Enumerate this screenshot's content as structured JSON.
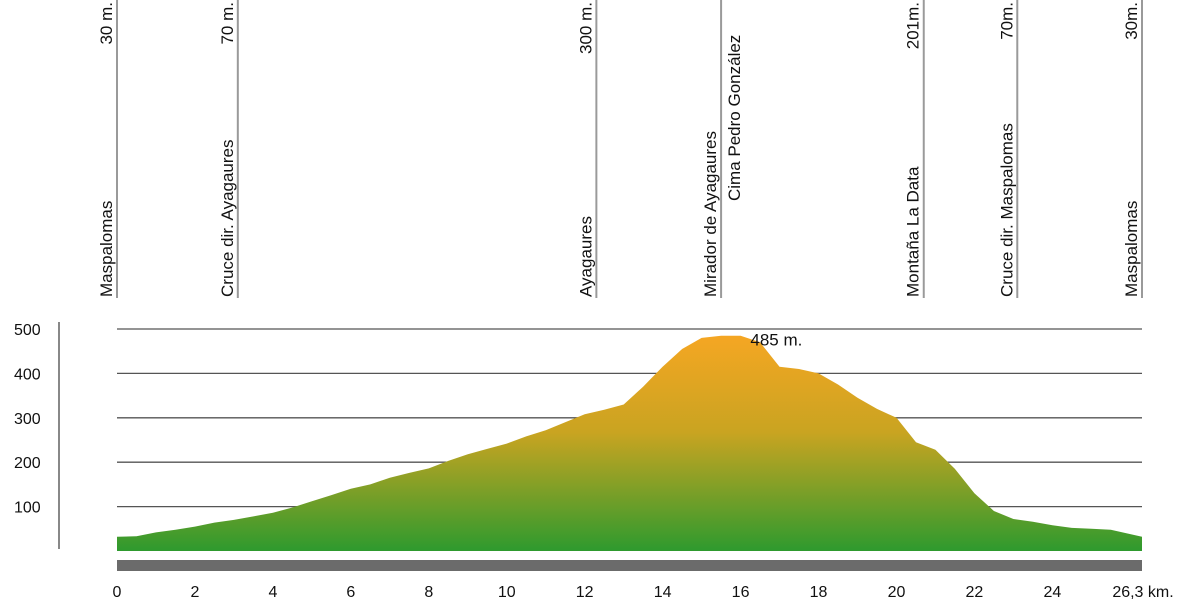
{
  "chart_data": {
    "type": "area",
    "title": "",
    "xlabel": "",
    "ylabel": "",
    "x_unit_label": "26,3 km.",
    "xlim": [
      0,
      26.3
    ],
    "ylim": [
      0,
      500
    ],
    "x_ticks": [
      "0",
      "2",
      "4",
      "6",
      "8",
      "10",
      "12",
      "14",
      "16",
      "18",
      "20",
      "22",
      "24"
    ],
    "y_ticks": [
      "100",
      "200",
      "300",
      "400",
      "500"
    ],
    "grid": true,
    "colors": {
      "top": "#f5a623",
      "bottom": "#2e9a2e",
      "grid": "#555555",
      "bar": "#6b6b6b",
      "marker": "#9a9a9a"
    },
    "peak_annotation": {
      "text": "485 m.",
      "x": 16.2,
      "y": 485
    },
    "profile": [
      [
        0,
        32
      ],
      [
        0.5,
        33
      ],
      [
        1,
        42
      ],
      [
        1.5,
        48
      ],
      [
        2,
        55
      ],
      [
        2.5,
        64
      ],
      [
        3,
        70
      ],
      [
        3.5,
        78
      ],
      [
        4,
        86
      ],
      [
        4.5,
        98
      ],
      [
        5,
        112
      ],
      [
        5.5,
        126
      ],
      [
        6,
        140
      ],
      [
        6.5,
        150
      ],
      [
        7,
        165
      ],
      [
        7.5,
        176
      ],
      [
        8,
        186
      ],
      [
        8.5,
        203
      ],
      [
        9,
        218
      ],
      [
        9.5,
        230
      ],
      [
        10,
        242
      ],
      [
        10.5,
        258
      ],
      [
        11,
        272
      ],
      [
        11.5,
        290
      ],
      [
        12,
        308
      ],
      [
        12.5,
        318
      ],
      [
        13,
        330
      ],
      [
        13.5,
        370
      ],
      [
        14,
        415
      ],
      [
        14.5,
        455
      ],
      [
        15,
        480
      ],
      [
        15.5,
        485
      ],
      [
        16,
        485
      ],
      [
        16.5,
        470
      ],
      [
        17,
        415
      ],
      [
        17.5,
        410
      ],
      [
        18,
        400
      ],
      [
        18.5,
        375
      ],
      [
        19,
        345
      ],
      [
        19.5,
        320
      ],
      [
        20,
        300
      ],
      [
        20.5,
        245
      ],
      [
        21,
        228
      ],
      [
        21.5,
        185
      ],
      [
        22,
        130
      ],
      [
        22.5,
        90
      ],
      [
        23,
        72
      ],
      [
        23.5,
        66
      ],
      [
        24,
        58
      ],
      [
        24.5,
        52
      ],
      [
        25,
        50
      ],
      [
        25.5,
        48
      ],
      [
        26,
        38
      ],
      [
        26.3,
        32
      ]
    ],
    "waypoints": [
      {
        "name": "Maspalomas",
        "elevation": "30  m.",
        "x": 0
      },
      {
        "name": "Cruce dir. Ayagaures",
        "elevation": "70 m.",
        "x": 3.1
      },
      {
        "name": "Ayagaures",
        "elevation": "300  m.",
        "x": 12.3
      },
      {
        "name": "Mirador de Ayagaures",
        "name2": "Cima Pedro González",
        "elevation": "",
        "x": 15.5
      },
      {
        "name": "Montaña  La  Data",
        "elevation": "201m.",
        "x": 20.7
      },
      {
        "name": "Cruce   dir.   Maspalomas",
        "elevation": "70m.",
        "x": 23.1
      },
      {
        "name": "Maspalomas",
        "elevation": "30m.",
        "x": 26.3
      }
    ]
  }
}
